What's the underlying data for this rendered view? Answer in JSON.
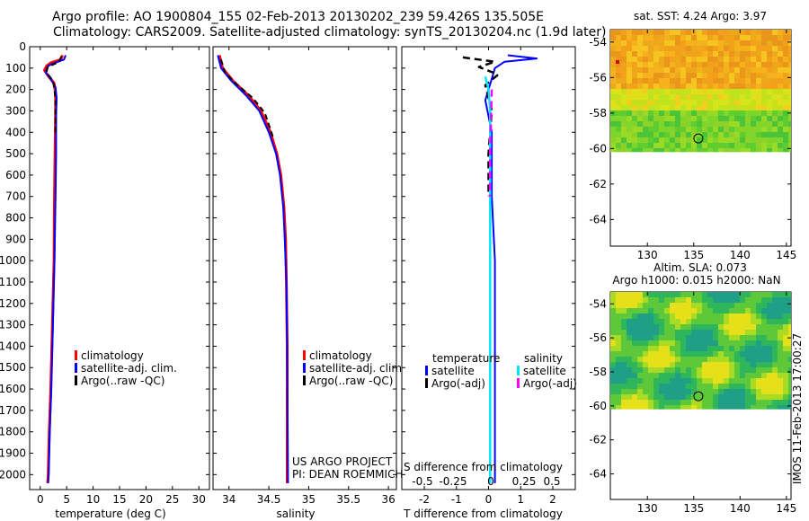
{
  "titles": {
    "line1": "Argo profile: AO 1900804_155 02-Feb-2013 20130202_239 59.426S 135.505E",
    "line2": "Climatology: CARS2009. Satellite-adjusted climatology: synTS_20130204.nc (1.9d later)"
  },
  "colors": {
    "climatology": "#ff0000",
    "satellite": "#0000ff",
    "argo": "#000000",
    "satellite_s": "#00e5ff",
    "argo_s": "#ff00ff"
  },
  "chart_data": [
    {
      "type": "line",
      "id": "temperature_profile",
      "xlabel": "temperature (deg C)",
      "x_ticks": [
        0,
        5,
        10,
        15,
        20,
        25,
        30
      ],
      "xlim": [
        -2,
        32
      ],
      "y_ticks": [
        0,
        100,
        200,
        300,
        400,
        500,
        600,
        700,
        800,
        900,
        1000,
        1100,
        1200,
        1300,
        1400,
        1500,
        1600,
        1700,
        1800,
        1900,
        2000
      ],
      "ylim": [
        2070,
        0
      ],
      "legend": [
        "climatology",
        "satellite-adj. clim.",
        "Argo(..raw -QC)"
      ],
      "series": [
        {
          "name": "climatology",
          "points": [
            [
              4.2,
              40
            ],
            [
              3.9,
              60
            ],
            [
              2.0,
              75
            ],
            [
              1.2,
              90
            ],
            [
              0.8,
              110
            ],
            [
              1.6,
              140
            ],
            [
              2.6,
              170
            ],
            [
              2.9,
              220
            ],
            [
              2.9,
              300
            ],
            [
              2.8,
              500
            ],
            [
              2.7,
              700
            ],
            [
              2.6,
              1000
            ],
            [
              2.3,
              1300
            ],
            [
              2.0,
              1600
            ],
            [
              1.7,
              1800
            ],
            [
              1.5,
              2000
            ],
            [
              1.4,
              2040
            ]
          ]
        },
        {
          "name": "satellite-adj. clim.",
          "points": [
            [
              4.8,
              40
            ],
            [
              4.5,
              60
            ],
            [
              2.8,
              75
            ],
            [
              1.5,
              90
            ],
            [
              1.0,
              120
            ],
            [
              2.0,
              150
            ],
            [
              2.9,
              190
            ],
            [
              3.1,
              240
            ],
            [
              3.0,
              320
            ],
            [
              3.0,
              500
            ],
            [
              2.9,
              700
            ],
            [
              2.7,
              1000
            ],
            [
              2.4,
              1300
            ],
            [
              2.1,
              1600
            ],
            [
              1.8,
              1800
            ],
            [
              1.6,
              2000
            ],
            [
              1.5,
              2040
            ]
          ]
        },
        {
          "name": "Argo(..raw -QC)",
          "points": [
            [
              4.0,
              45
            ],
            [
              3.6,
              70
            ],
            [
              1.4,
              95
            ],
            [
              1.2,
              120
            ],
            [
              2.4,
              160
            ],
            [
              2.7,
              200
            ],
            [
              2.9,
              260
            ],
            [
              2.9,
              400
            ]
          ]
        }
      ]
    },
    {
      "type": "line",
      "id": "salinity_profile",
      "xlabel": "salinity",
      "x_ticks": [
        34,
        34.5,
        35,
        35.5,
        36
      ],
      "xlim": [
        33.8,
        36.1
      ],
      "ylim": [
        2070,
        0
      ],
      "legend": [
        "climatology",
        "satellite-adj. clim.",
        "Argo(..raw -QC)"
      ],
      "annotation": [
        "US ARGO PROJECT",
        "PI: DEAN ROEMMICH"
      ],
      "series": [
        {
          "name": "climatology",
          "points": [
            [
              33.88,
              40
            ],
            [
              33.92,
              100
            ],
            [
              34.05,
              160
            ],
            [
              34.25,
              230
            ],
            [
              34.4,
              300
            ],
            [
              34.52,
              400
            ],
            [
              34.6,
              500
            ],
            [
              34.65,
              600
            ],
            [
              34.69,
              750
            ],
            [
              34.71,
              900
            ],
            [
              34.72,
              1100
            ],
            [
              34.73,
              1400
            ],
            [
              34.73,
              2040
            ]
          ]
        },
        {
          "name": "satellite-adj. clim.",
          "points": [
            [
              33.86,
              40
            ],
            [
              33.9,
              100
            ],
            [
              34.03,
              160
            ],
            [
              34.22,
              230
            ],
            [
              34.38,
              300
            ],
            [
              34.5,
              400
            ],
            [
              34.59,
              500
            ],
            [
              34.64,
              600
            ],
            [
              34.68,
              750
            ],
            [
              34.7,
              900
            ],
            [
              34.72,
              1100
            ],
            [
              34.73,
              1400
            ],
            [
              34.74,
              2040
            ]
          ]
        },
        {
          "name": "Argo(..raw -QC)",
          "points": [
            [
              33.9,
              60
            ],
            [
              33.95,
              120
            ],
            [
              34.08,
              170
            ],
            [
              34.3,
              240
            ],
            [
              34.45,
              310
            ],
            [
              34.55,
              420
            ]
          ]
        }
      ]
    },
    {
      "type": "line",
      "id": "difference_profile",
      "xlabel": "T difference from climatology",
      "x_ticks": [
        -2,
        -1,
        0,
        1,
        2
      ],
      "xlim": [
        -2.7,
        2.7
      ],
      "top_label": "S difference from climatology",
      "s_ticks": [
        "-0.5",
        "-0.25",
        "0",
        "0.25",
        "0.5"
      ],
      "ylim": [
        2070,
        0
      ],
      "legend_headers": [
        "temperature",
        "salinity"
      ],
      "legend": [
        "satellite",
        "Argo(-adj)",
        "satellite",
        "Argo(-adj)"
      ],
      "series": [
        {
          "name": "T satellite",
          "points": [
            [
              0.6,
              40
            ],
            [
              1.5,
              55
            ],
            [
              0.5,
              70
            ],
            [
              0.2,
              100
            ],
            [
              0.1,
              150
            ],
            [
              -0.1,
              250
            ],
            [
              0.1,
              400
            ],
            [
              0.1,
              700
            ],
            [
              0.2,
              1000
            ],
            [
              0.2,
              2040
            ]
          ]
        },
        {
          "name": "T Argo(-adj)",
          "points": [
            [
              -0.8,
              50
            ],
            [
              0.2,
              70
            ],
            [
              -0.3,
              95
            ],
            [
              0.3,
              130
            ],
            [
              -0.1,
              180
            ],
            [
              0.1,
              300
            ],
            [
              0.0,
              500
            ],
            [
              0.0,
              700
            ]
          ]
        },
        {
          "name": "S satellite",
          "points": [
            [
              -0.1,
              140
            ],
            [
              0.0,
              200
            ],
            [
              0.05,
              300
            ],
            [
              0.05,
              500
            ],
            [
              0.05,
              700
            ],
            [
              0.05,
              1000
            ],
            [
              0.05,
              2040
            ]
          ]
        },
        {
          "name": "S Argo(-adj)",
          "points": [
            [
              0.1,
              200
            ],
            [
              0.08,
              300
            ],
            [
              0.05,
              500
            ],
            [
              0.04,
              700
            ]
          ]
        }
      ]
    },
    {
      "type": "heatmap",
      "id": "sst_map",
      "title": "sat. SST: 4.24 Argo: 3.97",
      "x_ticks": [
        130,
        135,
        140,
        145
      ],
      "y_ticks": [
        -54,
        -56,
        -58,
        -60,
        -62,
        -64
      ],
      "xlim": [
        126,
        145.5
      ],
      "ylim": [
        -65.5,
        -53.3
      ],
      "data_lat_min": -60.2,
      "marker": [
        135.5,
        -59.43
      ]
    },
    {
      "type": "heatmap",
      "id": "sla_map",
      "title": "Altim. SLA: 0.073",
      "subtitle": "Argo h1000: 0.015 h2000: NaN",
      "x_ticks": [
        130,
        135,
        140,
        145
      ],
      "y_ticks": [
        -54,
        -56,
        -58,
        -60,
        -62,
        -64
      ],
      "xlim": [
        126,
        145.5
      ],
      "ylim": [
        -65.5,
        -53.3
      ],
      "data_lat_min": -60.2,
      "marker": [
        135.5,
        -59.43
      ]
    }
  ],
  "footer": "IMOS 11-Feb-2013 17:00:27"
}
